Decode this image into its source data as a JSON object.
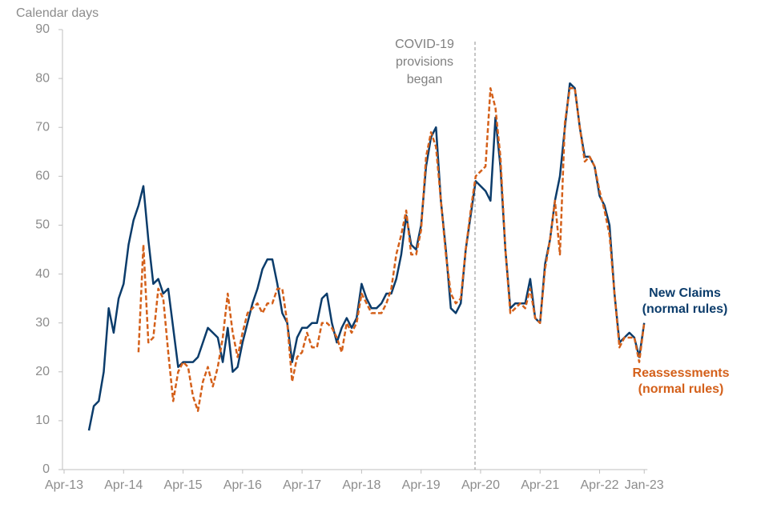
{
  "chart_data": {
    "type": "line",
    "y_label": "Calendar days",
    "ylim": [
      0,
      90
    ],
    "yticks": [
      0,
      10,
      20,
      30,
      40,
      50,
      60,
      70,
      80,
      90
    ],
    "categories": [
      "Apr-13",
      null,
      null,
      null,
      null,
      null,
      null,
      null,
      null,
      null,
      null,
      null,
      "Apr-14",
      null,
      null,
      null,
      null,
      null,
      null,
      null,
      null,
      null,
      null,
      null,
      "Apr-15",
      null,
      null,
      null,
      null,
      null,
      null,
      null,
      null,
      null,
      null,
      null,
      "Apr-16",
      null,
      null,
      null,
      null,
      null,
      null,
      null,
      null,
      null,
      null,
      null,
      "Apr-17",
      null,
      null,
      null,
      null,
      null,
      null,
      null,
      null,
      null,
      null,
      null,
      "Apr-18",
      null,
      null,
      null,
      null,
      null,
      null,
      null,
      null,
      null,
      null,
      null,
      "Apr-19",
      null,
      null,
      null,
      null,
      null,
      null,
      null,
      null,
      null,
      null,
      null,
      "Apr-20",
      null,
      null,
      null,
      null,
      null,
      null,
      null,
      null,
      null,
      null,
      null,
      "Apr-21",
      null,
      null,
      null,
      null,
      null,
      null,
      null,
      null,
      null,
      null,
      null,
      "Apr-22",
      null,
      null,
      null,
      null,
      null,
      null,
      null,
      null,
      "Jan-23"
    ],
    "series": [
      {
        "name": "New Claims (normal rules)",
        "color": "#0b3c6b",
        "dashed": false,
        "values": [
          null,
          null,
          null,
          null,
          null,
          8,
          13,
          14,
          20,
          33,
          28,
          35,
          38,
          46,
          51,
          54,
          58,
          47,
          38,
          39,
          36,
          37,
          29,
          21,
          22,
          22,
          22,
          23,
          26,
          29,
          28,
          27,
          22,
          29,
          20,
          21,
          26,
          30,
          34,
          37,
          41,
          43,
          43,
          38,
          32,
          30,
          22,
          27,
          29,
          29,
          30,
          30,
          35,
          36,
          30,
          26,
          29,
          31,
          29,
          31,
          38,
          35,
          33,
          33,
          34,
          36,
          36,
          39,
          44,
          52,
          46,
          45,
          50,
          62,
          68,
          70,
          55,
          45,
          33,
          32,
          34,
          45,
          52,
          59,
          58,
          57,
          55,
          72,
          62,
          45,
          33,
          34,
          34,
          34,
          39,
          31,
          30,
          42,
          47,
          55,
          60,
          70,
          79,
          78,
          70,
          64,
          64,
          62,
          56,
          54,
          50,
          36,
          26,
          27,
          28,
          27,
          23,
          30
        ]
      },
      {
        "name": "Reassessments (normal rules)",
        "color": "#d4601a",
        "dashed": true,
        "values": [
          null,
          null,
          null,
          null,
          null,
          null,
          null,
          null,
          null,
          null,
          null,
          null,
          null,
          null,
          null,
          24,
          46,
          26,
          27,
          37,
          35,
          24,
          14,
          20,
          22,
          21,
          15,
          12,
          18,
          21,
          17,
          21,
          27,
          36,
          28,
          23,
          28,
          32,
          33,
          34,
          32,
          34,
          34,
          37,
          37,
          30,
          18,
          23,
          24,
          28,
          25,
          25,
          30,
          30,
          29,
          27,
          24,
          30,
          28,
          30,
          36,
          34,
          32,
          32,
          32,
          34,
          37,
          44,
          48,
          53,
          44,
          44,
          49,
          64,
          69,
          66,
          55,
          44,
          36,
          34,
          35,
          45,
          53,
          60,
          61,
          62,
          78,
          74,
          64,
          45,
          32,
          33,
          34,
          33,
          37,
          31,
          30,
          41,
          47,
          55,
          44,
          71,
          78,
          78,
          70,
          63,
          64,
          62,
          57,
          53,
          48,
          36,
          25,
          27,
          27,
          27,
          22,
          30
        ]
      }
    ],
    "annotation": "COVID-19 provisions began"
  }
}
